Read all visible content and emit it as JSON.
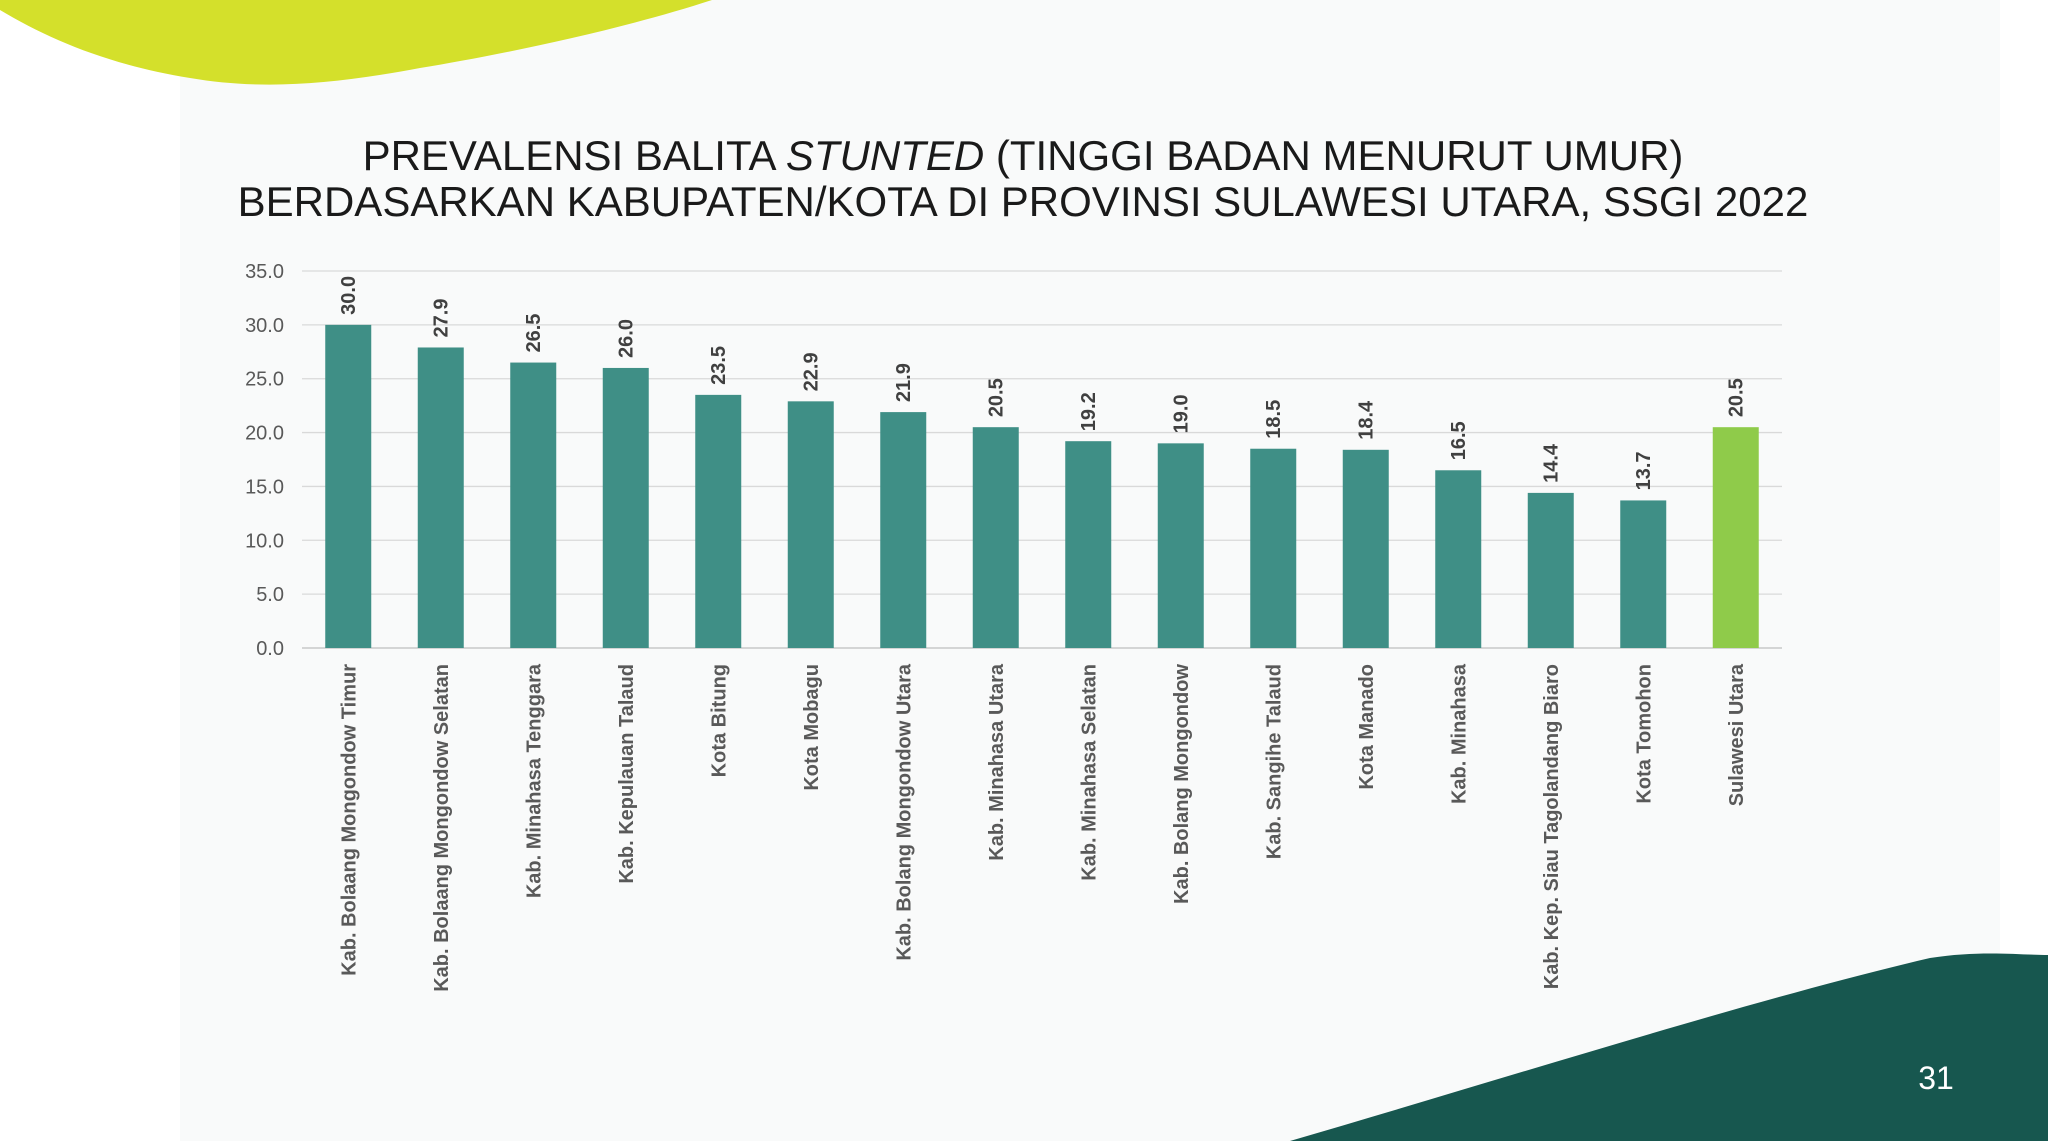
{
  "slide": {
    "page_number": "31",
    "colors": {
      "accent_top": "#d4e02b",
      "accent_bottom": "#17574f",
      "panel": "#f8f9fa"
    }
  },
  "chart_data": {
    "type": "bar",
    "title_line1_pre": "PREVALENSI BALITA ",
    "title_line1_em": "STUNTED",
    "title_line1_post": " (TINGGI BADAN MENURUT UMUR)",
    "title_line2": "BERDASARKAN KABUPATEN/KOTA DI PROVINSI SULAWESI UTARA, SSGI 2022",
    "ylim": [
      0,
      35
    ],
    "yticks": [
      "0.0",
      "5.0",
      "10.0",
      "15.0",
      "20.0",
      "25.0",
      "30.0",
      "35.0"
    ],
    "grid": true,
    "categories": [
      "Kab. Bolaang Mongondow Timur",
      "Kab. Bolaang Mongondow Selatan",
      "Kab. Minahasa Tenggara",
      "Kab. Kepulauan Talaud",
      "Kota Bitung",
      "Kota Mobagu",
      "Kab. Bolang Mongondow Utara",
      "Kab. Minahasa Utara",
      "Kab. Minahasa Selatan",
      "Kab. Bolang Mongondow",
      "Kab. Sangihe Talaud",
      "Kota Manado",
      "Kab. Minahasa",
      "Kab. Kep. Siau Tagolandang Biaro",
      "Kota Tomohon",
      "Sulawesi Utara"
    ],
    "values": [
      30.0,
      27.9,
      26.5,
      26.0,
      23.5,
      22.9,
      21.9,
      20.5,
      19.2,
      19.0,
      18.5,
      18.4,
      16.5,
      14.4,
      13.7,
      20.5
    ],
    "value_labels": [
      "30.0",
      "27.9",
      "26.5",
      "26.0",
      "23.5",
      "22.9",
      "21.9",
      "20.5",
      "19.2",
      "19.0",
      "18.5",
      "18.4",
      "16.5",
      "14.4",
      "13.7",
      "20.5"
    ],
    "bar_color": "#3f8f86",
    "highlight_color": "#8fcb4a",
    "highlight_index": 15
  }
}
